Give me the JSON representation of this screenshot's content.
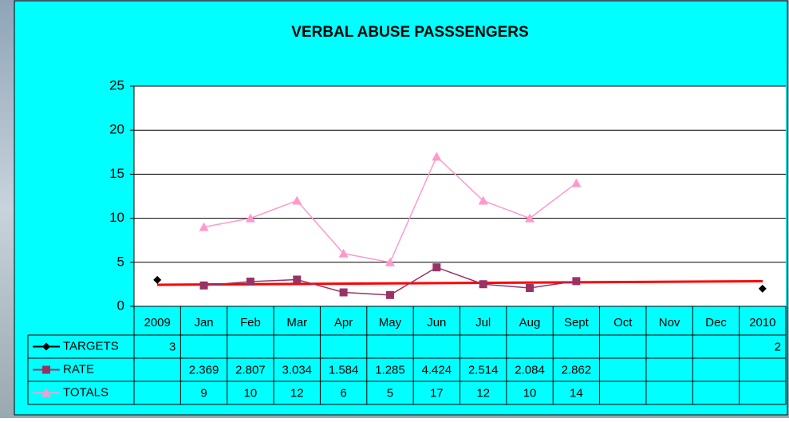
{
  "chart_data": {
    "type": "line",
    "title": "VERBAL ABUSE PASSSENGERS",
    "categories": [
      "2009",
      "Jan",
      "Feb",
      "Mar",
      "Apr",
      "May",
      "Jun",
      "Jul",
      "Aug",
      "Sept",
      "Oct",
      "Nov",
      "Dec",
      "2010"
    ],
    "series": [
      {
        "name": "TARGETS",
        "color": "#000000",
        "marker": "diamond",
        "values": [
          3,
          null,
          null,
          null,
          null,
          null,
          null,
          null,
          null,
          null,
          null,
          null,
          null,
          2
        ]
      },
      {
        "name": "RATE",
        "color": "#993366",
        "marker": "square",
        "values": [
          null,
          2.369,
          2.807,
          3.034,
          1.584,
          1.285,
          4.424,
          2.514,
          2.084,
          2.862,
          null,
          null,
          null,
          null
        ]
      },
      {
        "name": "TOTALS",
        "color": "#ff99cc",
        "marker": "triangle",
        "values": [
          null,
          9,
          10,
          12,
          6,
          5,
          17,
          12,
          10,
          14,
          null,
          null,
          null,
          null
        ]
      }
    ],
    "ylim": [
      0,
      25
    ],
    "yticks": [
      0,
      5,
      10,
      15,
      20,
      25
    ],
    "grid": true
  }
}
